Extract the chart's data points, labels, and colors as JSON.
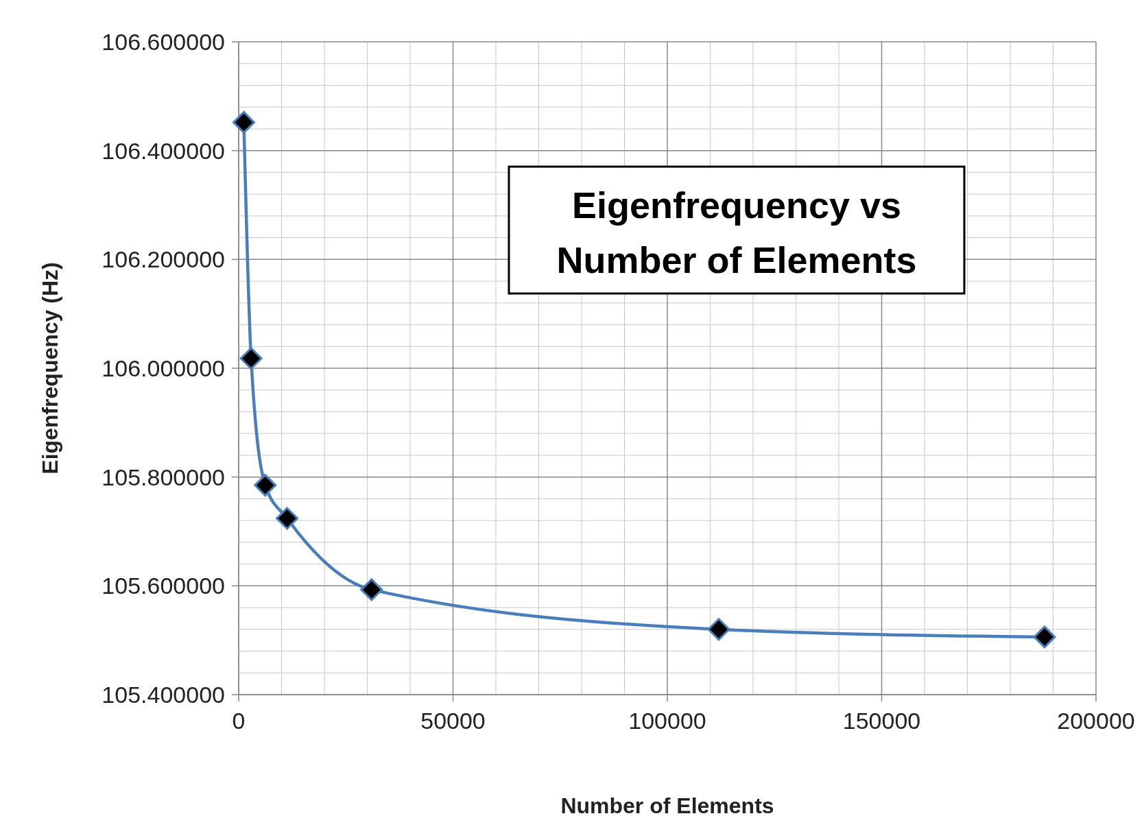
{
  "chart_data": {
    "type": "line",
    "title": "Eigenfrequency vs Number of Elements",
    "xlabel": "Number of Elements",
    "ylabel": "Eigenfrequency (Hz)",
    "x": [
      1200,
      2900,
      6200,
      11300,
      31000,
      112000,
      188000
    ],
    "series": [
      {
        "color": "#4a7ebb",
        "values": [
          106.452,
          106.018,
          105.785,
          105.724,
          105.593,
          105.52,
          105.506
        ]
      }
    ],
    "xlim": [
      0,
      200000
    ],
    "xticks": [
      0,
      50000,
      100000,
      150000,
      200000
    ],
    "ylim": [
      105.4,
      106.6
    ],
    "yticks": [
      {
        "value": 105.4,
        "label": "105.400000"
      },
      {
        "value": 105.6,
        "label": "105.600000"
      },
      {
        "value": 105.8,
        "label": "105.800000"
      },
      {
        "value": 106,
        "label": "106.000000"
      },
      {
        "value": 106.2,
        "label": "106.200000"
      },
      {
        "value": 106.4,
        "label": "106.400000"
      },
      {
        "value": 106.6,
        "label": "106.600000"
      }
    ],
    "grid": true,
    "marker": "diamond",
    "line_style": "solid"
  }
}
